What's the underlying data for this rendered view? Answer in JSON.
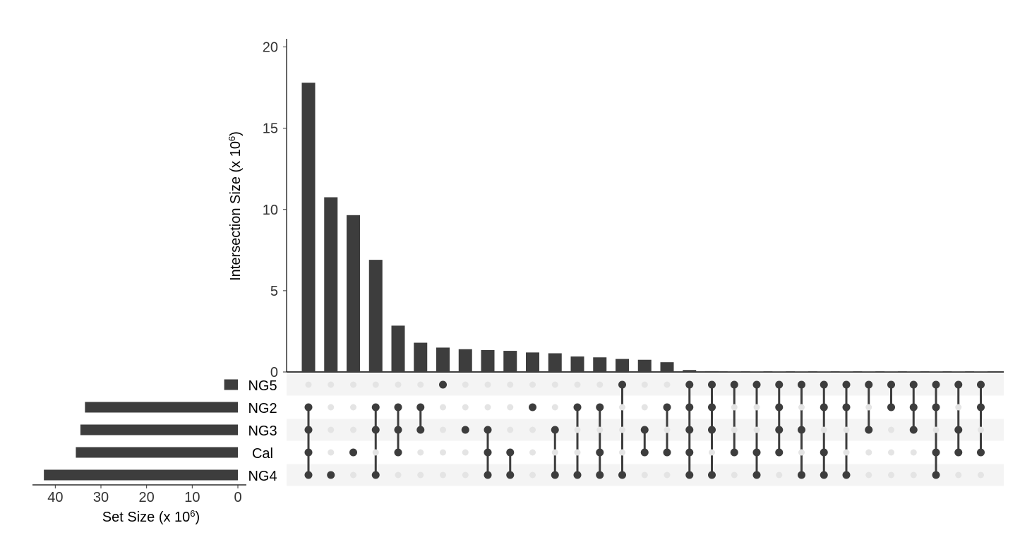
{
  "chart_data": {
    "type": "upset",
    "sets": [
      "NG5",
      "NG2",
      "NG3",
      "Cal",
      "NG4"
    ],
    "set_sizes": [
      3.0,
      33.5,
      34.5,
      35.5,
      42.5
    ],
    "set_size_axis": {
      "label_prefix": "Set Size (x 10",
      "label_exp": "6",
      "label_suffix": ")",
      "ticks": [
        40,
        30,
        20,
        10,
        0
      ],
      "xlim": [
        45,
        0
      ]
    },
    "intersection_axis": {
      "label_prefix": "Intersection Size (x 10",
      "label_exp": "6",
      "label_suffix": ")",
      "ticks": [
        0,
        5,
        10,
        15,
        20
      ],
      "ylim": [
        0,
        20.5
      ]
    },
    "intersections": [
      {
        "values": 17.8,
        "members": [
          "NG2",
          "NG3",
          "Cal",
          "NG4"
        ]
      },
      {
        "values": 10.75,
        "members": [
          "NG4"
        ]
      },
      {
        "values": 9.65,
        "members": [
          "Cal"
        ]
      },
      {
        "values": 6.9,
        "members": [
          "NG2",
          "NG3",
          "NG4"
        ]
      },
      {
        "values": 2.85,
        "members": [
          "NG2",
          "NG3",
          "Cal"
        ]
      },
      {
        "values": 1.8,
        "members": [
          "NG2",
          "NG3"
        ]
      },
      {
        "values": 1.5,
        "members": [
          "NG5"
        ]
      },
      {
        "values": 1.4,
        "members": [
          "NG3"
        ]
      },
      {
        "values": 1.35,
        "members": [
          "NG3",
          "Cal",
          "NG4"
        ]
      },
      {
        "values": 1.3,
        "members": [
          "Cal",
          "NG4"
        ]
      },
      {
        "values": 1.2,
        "members": [
          "NG2"
        ]
      },
      {
        "values": 1.15,
        "members": [
          "NG3",
          "NG4"
        ]
      },
      {
        "values": 0.95,
        "members": [
          "NG2",
          "NG4"
        ]
      },
      {
        "values": 0.9,
        "members": [
          "NG2",
          "Cal",
          "NG4"
        ]
      },
      {
        "values": 0.8,
        "members": [
          "NG5",
          "NG4"
        ]
      },
      {
        "values": 0.75,
        "members": [
          "NG3",
          "Cal"
        ]
      },
      {
        "values": 0.6,
        "members": [
          "NG2",
          "Cal"
        ]
      },
      {
        "values": 0.12,
        "members": [
          "NG5",
          "NG2",
          "NG3",
          "Cal",
          "NG4"
        ]
      },
      {
        "values": 0.05,
        "members": [
          "NG5",
          "NG2",
          "NG3",
          "NG4"
        ]
      },
      {
        "values": 0.03,
        "members": [
          "NG5",
          "Cal"
        ]
      },
      {
        "values": 0.02,
        "members": [
          "NG5",
          "Cal",
          "NG4"
        ]
      },
      {
        "values": 0.02,
        "members": [
          "NG5",
          "NG2",
          "NG3",
          "Cal"
        ]
      },
      {
        "values": 0.02,
        "members": [
          "NG5",
          "NG3",
          "NG4"
        ]
      },
      {
        "values": 0.02,
        "members": [
          "NG5",
          "NG2",
          "Cal",
          "NG4"
        ]
      },
      {
        "values": 0.01,
        "members": [
          "NG5",
          "NG2",
          "NG4"
        ]
      },
      {
        "values": 0.01,
        "members": [
          "NG5",
          "NG3"
        ]
      },
      {
        "values": 0.01,
        "members": [
          "NG5",
          "NG2"
        ]
      },
      {
        "values": 0.01,
        "members": [
          "NG5",
          "NG2",
          "NG3"
        ]
      },
      {
        "values": 0.01,
        "members": [
          "NG5",
          "NG2",
          "Cal",
          "NG4"
        ]
      },
      {
        "values": 0.01,
        "members": [
          "NG5",
          "NG3",
          "Cal"
        ]
      },
      {
        "values": 0.01,
        "members": [
          "NG5",
          "NG2",
          "Cal"
        ]
      }
    ],
    "colors": {
      "bar": "#3d3d3d",
      "dot_active": "#3d3d3d",
      "dot_inactive": "#e4e4e4",
      "stripe": "#f4f4f4"
    }
  }
}
